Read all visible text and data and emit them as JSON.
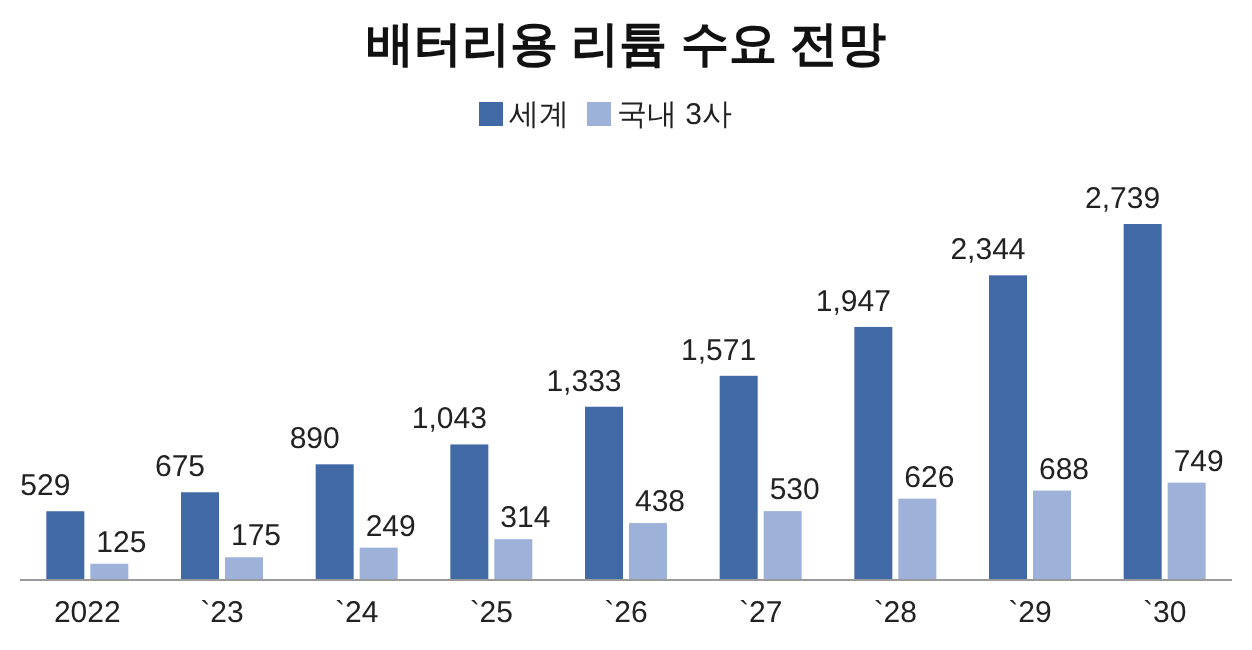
{
  "chart_data": {
    "type": "bar",
    "title": "배터리용 리튬 수요 전망",
    "categories": [
      "2022",
      "`23",
      "`24",
      "`25",
      "`26",
      "`27",
      "`28",
      "`29",
      "`30"
    ],
    "series": [
      {
        "name": "세계",
        "color": "#4169a6",
        "values": [
          529,
          675,
          890,
          1043,
          1333,
          1571,
          1947,
          2344,
          2739
        ],
        "value_labels": [
          "529",
          "675",
          "890",
          "1,043",
          "1,333",
          "1,571",
          "1,947",
          "2,344",
          "2,739"
        ]
      },
      {
        "name": "국내 3사",
        "color": "#9db1d9",
        "values": [
          125,
          175,
          249,
          314,
          438,
          530,
          626,
          688,
          749
        ],
        "value_labels": [
          "125",
          "175",
          "249",
          "314",
          "438",
          "530",
          "626",
          "688",
          "749"
        ]
      }
    ],
    "legend": "top"
  }
}
